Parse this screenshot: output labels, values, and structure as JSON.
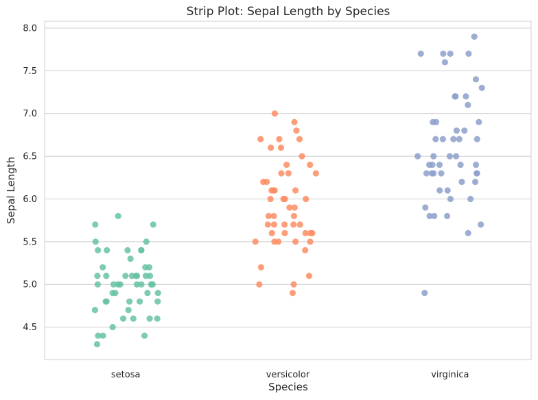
{
  "chart_data": {
    "type": "scatter",
    "subtype": "strip",
    "title": "Strip Plot: Sepal Length by Species",
    "xlabel": "Species",
    "ylabel": "Sepal Length",
    "categories": [
      "setosa",
      "versicolor",
      "virginica"
    ],
    "ylim": [
      4.12,
      8.08
    ],
    "yticks": [
      "4.5",
      "5.0",
      "5.5",
      "6.0",
      "6.5",
      "7.0",
      "7.5",
      "8.0"
    ],
    "grid": "horizontal",
    "series": [
      {
        "category": "setosa",
        "color": "#66c2a5",
        "values": [
          5.1,
          4.9,
          4.7,
          4.6,
          5.0,
          5.4,
          4.6,
          5.0,
          4.4,
          4.9,
          5.4,
          4.8,
          4.8,
          4.3,
          5.8,
          5.7,
          5.4,
          5.1,
          5.7,
          5.1,
          5.4,
          5.1,
          4.6,
          5.1,
          4.8,
          5.0,
          5.0,
          5.2,
          5.2,
          4.7,
          4.8,
          5.4,
          5.2,
          5.5,
          4.9,
          5.0,
          5.5,
          4.9,
          4.4,
          5.1,
          5.0,
          4.5,
          4.4,
          5.0,
          5.1,
          4.8,
          5.1,
          4.6,
          5.3,
          5.0
        ]
      },
      {
        "category": "versicolor",
        "color": "#fc8d62",
        "values": [
          7.0,
          6.4,
          6.9,
          5.5,
          6.5,
          5.7,
          6.3,
          4.9,
          6.6,
          5.2,
          5.0,
          5.9,
          6.0,
          6.1,
          5.6,
          6.7,
          5.6,
          5.8,
          6.2,
          5.6,
          5.9,
          6.1,
          6.3,
          6.1,
          6.4,
          6.6,
          6.8,
          6.7,
          6.0,
          5.7,
          5.5,
          5.5,
          5.8,
          6.0,
          5.4,
          6.0,
          6.7,
          6.3,
          5.6,
          5.5,
          5.5,
          6.1,
          5.8,
          5.0,
          5.6,
          5.7,
          5.7,
          6.2,
          5.1,
          5.7
        ]
      },
      {
        "category": "virginica",
        "color": "#8da0cb",
        "values": [
          6.3,
          5.8,
          7.1,
          6.3,
          6.5,
          7.6,
          4.9,
          7.3,
          6.7,
          7.2,
          6.5,
          6.4,
          6.8,
          5.7,
          5.8,
          6.4,
          6.5,
          7.7,
          7.7,
          6.0,
          6.9,
          5.6,
          7.7,
          6.3,
          6.7,
          7.2,
          6.2,
          6.1,
          6.4,
          7.2,
          7.4,
          7.9,
          6.4,
          6.3,
          6.1,
          7.7,
          6.3,
          6.4,
          6.0,
          6.9,
          6.7,
          6.9,
          5.8,
          6.8,
          6.7,
          6.7,
          6.3,
          6.5,
          6.2,
          5.9
        ]
      }
    ]
  }
}
